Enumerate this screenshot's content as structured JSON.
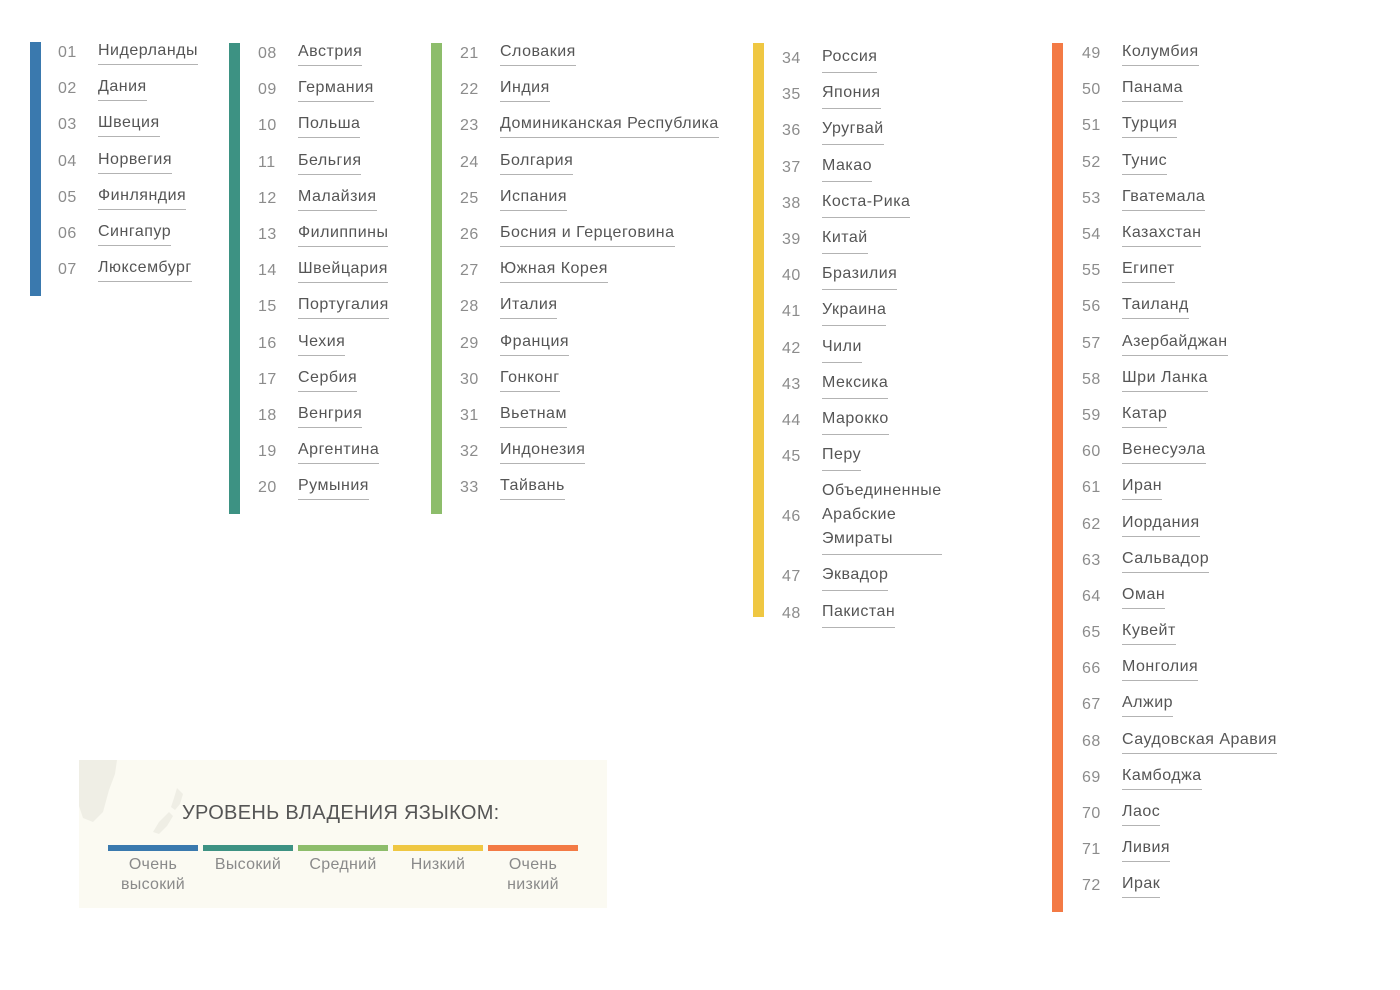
{
  "groups": [
    {
      "color": "#3a79ae",
      "items": [
        {
          "rank": "01",
          "name": "Нидерланды"
        },
        {
          "rank": "02",
          "name": "Дания"
        },
        {
          "rank": "03",
          "name": "Швеция"
        },
        {
          "rank": "04",
          "name": "Норвегия"
        },
        {
          "rank": "05",
          "name": "Финляндия"
        },
        {
          "rank": "06",
          "name": "Сингапур"
        },
        {
          "rank": "07",
          "name": "Люксембург"
        }
      ]
    },
    {
      "color": "#3d9283",
      "items": [
        {
          "rank": "08",
          "name": "Австрия"
        },
        {
          "rank": "09",
          "name": "Германия"
        },
        {
          "rank": "10",
          "name": "Польша"
        },
        {
          "rank": "11",
          "name": "Бельгия"
        },
        {
          "rank": "12",
          "name": "Малайзия"
        },
        {
          "rank": "13",
          "name": "Филиппины"
        },
        {
          "rank": "14",
          "name": "Швейцария"
        },
        {
          "rank": "15",
          "name": "Португалия"
        },
        {
          "rank": "16",
          "name": "Чехия"
        },
        {
          "rank": "17",
          "name": "Сербия"
        },
        {
          "rank": "18",
          "name": "Венгрия"
        },
        {
          "rank": "19",
          "name": "Аргентина"
        },
        {
          "rank": "20",
          "name": "Румыния"
        }
      ]
    },
    {
      "color": "#8dbd6b",
      "items": [
        {
          "rank": "21",
          "name": "Словакия"
        },
        {
          "rank": "22",
          "name": "Индия"
        },
        {
          "rank": "23",
          "name": "Доминиканская Республика"
        },
        {
          "rank": "24",
          "name": "Болгария"
        },
        {
          "rank": "25",
          "name": "Испания"
        },
        {
          "rank": "26",
          "name": "Босния и Герцеговина"
        },
        {
          "rank": "27",
          "name": "Южная Корея"
        },
        {
          "rank": "28",
          "name": "Италия"
        },
        {
          "rank": "29",
          "name": "Франция"
        },
        {
          "rank": "30",
          "name": "Гонконг"
        },
        {
          "rank": "31",
          "name": "Вьетнам"
        },
        {
          "rank": "32",
          "name": "Индонезия"
        },
        {
          "rank": "33",
          "name": "Тайвань"
        }
      ]
    },
    {
      "color": "#efc742",
      "items": [
        {
          "rank": "34",
          "name": "Россия"
        },
        {
          "rank": "35",
          "name": "Япония"
        },
        {
          "rank": "36",
          "name": "Уругвай"
        },
        {
          "rank": "37",
          "name": "Макао"
        },
        {
          "rank": "38",
          "name": "Коста-Рика"
        },
        {
          "rank": "39",
          "name": "Китай"
        },
        {
          "rank": "40",
          "name": "Бразилия"
        },
        {
          "rank": "41",
          "name": "Украина"
        },
        {
          "rank": "42",
          "name": "Чили"
        },
        {
          "rank": "43",
          "name": "Мексика"
        },
        {
          "rank": "44",
          "name": "Марокко"
        },
        {
          "rank": "45",
          "name": "Перу"
        },
        {
          "rank": "46",
          "name": "Объединенные Арабские Эмираты"
        },
        {
          "rank": "47",
          "name": "Эквадор"
        },
        {
          "rank": "48",
          "name": "Пакистан"
        }
      ]
    },
    {
      "color": "#f37a45",
      "items": [
        {
          "rank": "49",
          "name": "Колумбия"
        },
        {
          "rank": "50",
          "name": "Панама"
        },
        {
          "rank": "51",
          "name": "Турция"
        },
        {
          "rank": "52",
          "name": "Тунис"
        },
        {
          "rank": "53",
          "name": "Гватемала"
        },
        {
          "rank": "54",
          "name": "Казахстан"
        },
        {
          "rank": "55",
          "name": "Египет"
        },
        {
          "rank": "56",
          "name": "Таиланд"
        },
        {
          "rank": "57",
          "name": "Азербайджан"
        },
        {
          "rank": "58",
          "name": "Шри Ланка"
        },
        {
          "rank": "59",
          "name": "Катар"
        },
        {
          "rank": "60",
          "name": "Венесуэла"
        },
        {
          "rank": "61",
          "name": "Иран"
        },
        {
          "rank": "62",
          "name": "Иордания"
        },
        {
          "rank": "63",
          "name": "Сальвадор"
        },
        {
          "rank": "64",
          "name": "Оман"
        },
        {
          "rank": "65",
          "name": "Кувейт"
        },
        {
          "rank": "66",
          "name": "Монголия"
        },
        {
          "rank": "67",
          "name": "Алжир"
        },
        {
          "rank": "68",
          "name": "Саудовская Аравия"
        },
        {
          "rank": "69",
          "name": "Камбоджа"
        },
        {
          "rank": "70",
          "name": "Лаос"
        },
        {
          "rank": "71",
          "name": "Ливия"
        },
        {
          "rank": "72",
          "name": "Ирак"
        }
      ]
    }
  ],
  "legend": {
    "title": "УРОВЕНЬ ВЛАДЕНИЯ ЯЗЫКОМ:",
    "levels": [
      {
        "label": "Очень высокий",
        "color": "#3a79ae"
      },
      {
        "label": "Высокий",
        "color": "#3d9283"
      },
      {
        "label": "Средний",
        "color": "#8dbd6b"
      },
      {
        "label": "Низкий",
        "color": "#efc742"
      },
      {
        "label": "Очень низкий",
        "color": "#f37a45"
      }
    ]
  }
}
